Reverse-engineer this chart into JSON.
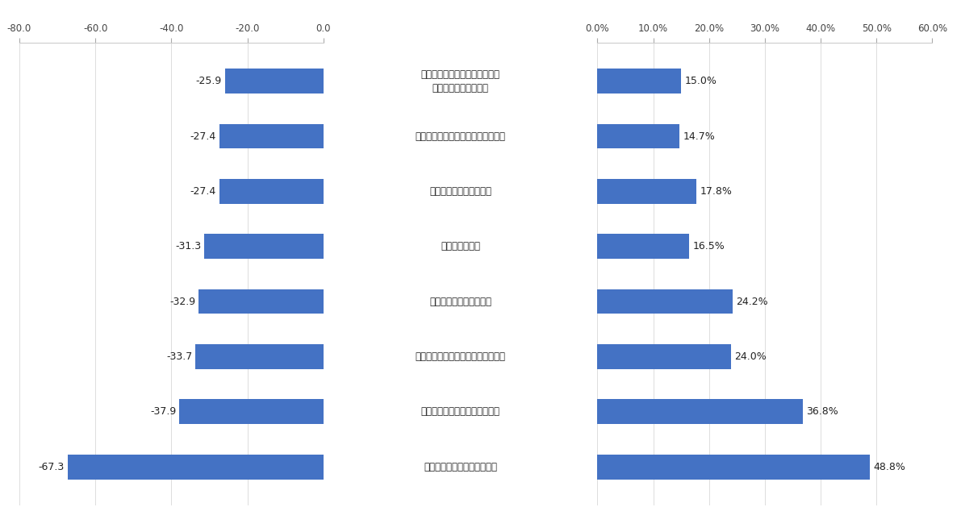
{
  "categories": [
    "ライフプランに沿った中長期の\n資産形成に関する情報",
    "類似する複数の金融商品の比較情報",
    "税制・相続に関する情報",
    "資産配分の情報",
    "売れ筋の金融商品の情報",
    "期待リターンの高い金融商品の情報",
    "資産運用の必要性に関する情報",
    "受けたことがある情報はない"
  ],
  "nps_values": [
    -25.9,
    -27.4,
    -27.4,
    -31.3,
    -32.9,
    -33.7,
    -37.9,
    -67.3
  ],
  "pct_values": [
    15.0,
    14.7,
    17.8,
    16.5,
    24.2,
    24.0,
    36.8,
    48.8
  ],
  "bar_color": "#4472C4",
  "nps_xlim": [
    -80,
    0
  ],
  "pct_xlim": [
    0,
    60
  ],
  "nps_xticks": [
    -80,
    -60,
    -40,
    -20,
    0
  ],
  "pct_xticks": [
    0,
    10,
    20,
    30,
    40,
    50,
    60
  ],
  "background_color": "#ffffff",
  "tick_color": "#444444",
  "label_color": "#222222",
  "bar_height": 0.45,
  "fig_width": 11.91,
  "fig_height": 6.6
}
